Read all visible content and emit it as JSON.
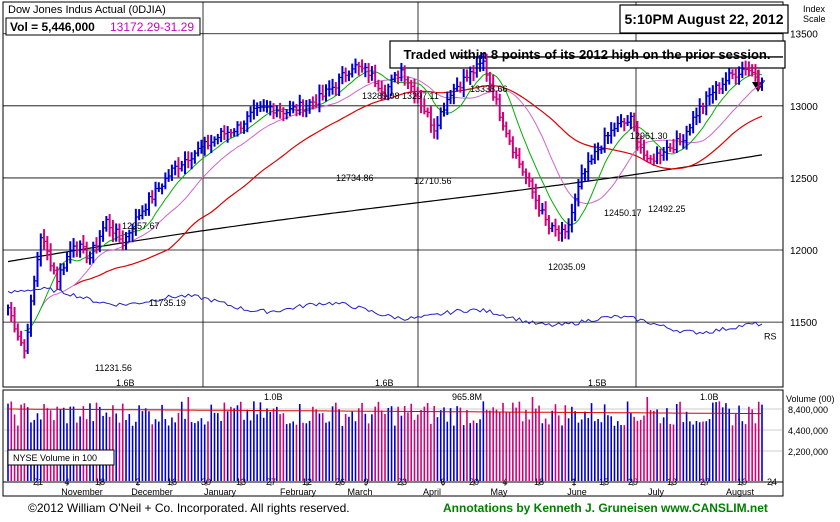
{
  "header": {
    "title": "Dow Jones Indus Actual  (0DJIA)",
    "vol_label": "Vol = 5,446,000",
    "last_price": "13172.29",
    "change": "-31.29",
    "timestamp": "5:10PM August 22, 2012",
    "index_scale_line1": "Index",
    "index_scale_line2": "Scale"
  },
  "annotation": "Traded within 8 points of its 2012 high on the prior session.",
  "footer": {
    "copyright": "©2012 William O'Neil + Co. Incorporated. All rights reserved.",
    "annotations_credit": "Annotations by Kenneth J. Gruneisen www.CANSLIM.net"
  },
  "colors": {
    "up_bar": "#0000cc",
    "down_bar": "#d0007a",
    "ma_short": "#00b000",
    "ma_medium": "#cc66cc",
    "ma_50": "#dd0000",
    "ma_200": "#000000",
    "rs_line": "#2020cc",
    "volume_avg": "#dd0000",
    "title_price": "#cc00cc",
    "footer_credit": "#008000"
  },
  "chart_data": {
    "type": "line",
    "price_axis": {
      "ticks": [
        11500,
        12000,
        12500,
        13000,
        13500
      ],
      "range": [
        11050,
        13720
      ]
    },
    "volume_axis": {
      "label": "Volume (00)",
      "ticks": [
        "8,400,000",
        "4,400,000",
        "2,200,000"
      ]
    },
    "x_day_labels": [
      "21",
      "4",
      "18",
      "2",
      "16",
      "30",
      "13",
      "27",
      "12",
      "26",
      "9",
      "23",
      "6",
      "20",
      "4",
      "18",
      "1",
      "15",
      "29",
      "13",
      "27",
      "10",
      "24"
    ],
    "x_month_labels": [
      "November",
      "December",
      "January",
      "February",
      "March",
      "April",
      "May",
      "June",
      "July",
      "August"
    ],
    "price_labels": [
      "11231.56",
      "11735.19",
      "12257.67",
      "12734.86",
      "13289.08",
      "13297.11",
      "12710.56",
      "13338.66",
      "12035.09",
      "12450.17",
      "12961.30",
      "12492.25"
    ],
    "rs_label": "RS",
    "volume_peak_labels": [
      "1.6B",
      "1.0B",
      "1.6B",
      "965.8M",
      "1.5B",
      "1.0B"
    ],
    "legend_box_text": "NYSE Volume in 100",
    "reference_line_value": 13338.66,
    "weekly_closes": [
      11600,
      11300,
      12100,
      11800,
      12050,
      11950,
      12200,
      12050,
      12250,
      12400,
      12550,
      12650,
      12720,
      12800,
      12850,
      12950,
      12990,
      12960,
      13000,
      13050,
      13150,
      13280,
      13230,
      13100,
      13250,
      13060,
      12850,
      13100,
      13200,
      13300,
      12950,
      12650,
      12400,
      12150,
      12100,
      12500,
      12700,
      12850,
      12900,
      12600,
      12700,
      12750,
      12950,
      13100,
      13200,
      13270,
      13172
    ]
  }
}
